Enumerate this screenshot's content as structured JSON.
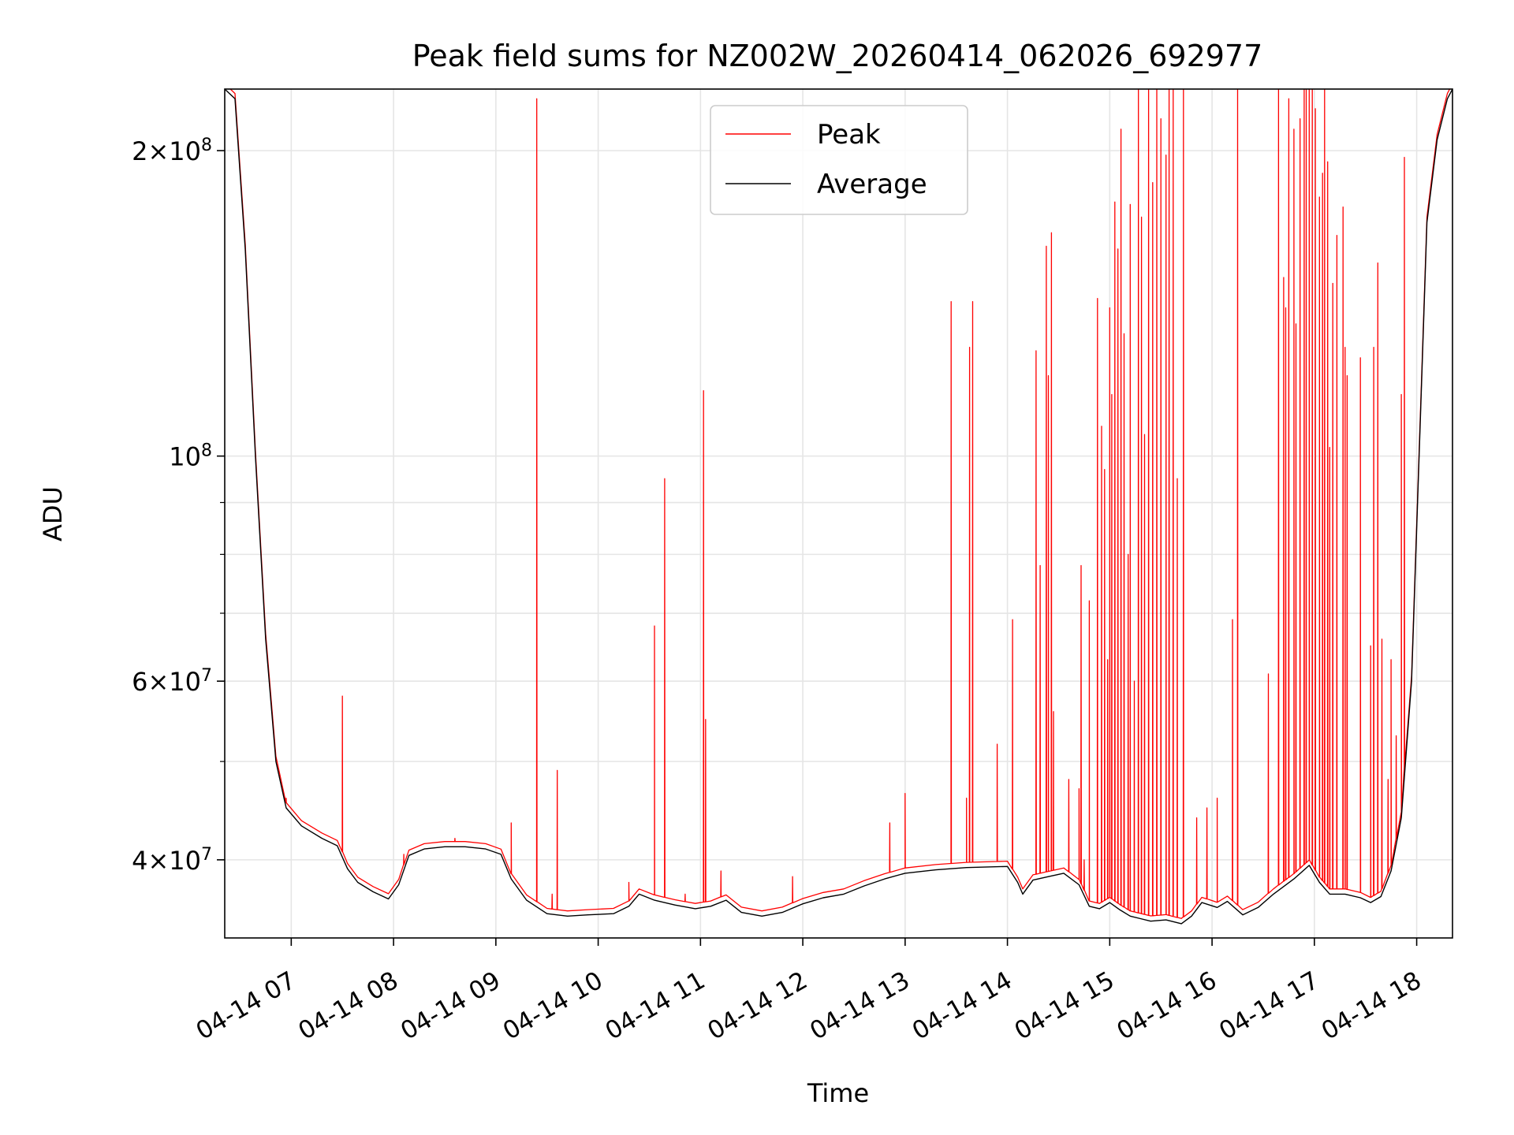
{
  "chart_data": {
    "type": "line",
    "title": "Peak field sums for NZ002W_20260414_062026_692977",
    "xlabel": "Time",
    "ylabel": "ADU",
    "yscale": "log",
    "grid": true,
    "legend_position": "top-center",
    "xlim": [
      6.35,
      18.35
    ],
    "ylim": [
      33500000,
      230000000
    ],
    "x_ticks": [
      {
        "value": 7,
        "label": "04-14 07"
      },
      {
        "value": 8,
        "label": "04-14 08"
      },
      {
        "value": 9,
        "label": "04-14 09"
      },
      {
        "value": 10,
        "label": "04-14 10"
      },
      {
        "value": 11,
        "label": "04-14 11"
      },
      {
        "value": 12,
        "label": "04-14 12"
      },
      {
        "value": 13,
        "label": "04-14 13"
      },
      {
        "value": 14,
        "label": "04-14 14"
      },
      {
        "value": 15,
        "label": "04-14 15"
      },
      {
        "value": 16,
        "label": "04-14 16"
      },
      {
        "value": 17,
        "label": "04-14 17"
      },
      {
        "value": 18,
        "label": "04-14 18"
      }
    ],
    "y_ticks": [
      {
        "value": 40000000,
        "mantissa": "4",
        "exp": "7"
      },
      {
        "value": 60000000,
        "mantissa": "6",
        "exp": "7"
      },
      {
        "value": 100000000,
        "mantissa": "",
        "exp": "8"
      },
      {
        "value": 200000000,
        "mantissa": "2",
        "exp": "8"
      }
    ],
    "y_minor_ticks": [
      50000000,
      70000000,
      80000000,
      90000000
    ],
    "series": [
      {
        "name": "Peak",
        "color": "#ff0000",
        "spikes": [
          [
            6.95,
            46000000
          ],
          [
            7.5,
            58000000
          ],
          [
            8.1,
            40500000
          ],
          [
            8.6,
            42000000
          ],
          [
            9.15,
            43500000
          ],
          [
            9.4,
            225000000
          ],
          [
            9.55,
            37000000
          ],
          [
            9.6,
            49000000
          ],
          [
            10.3,
            38000000
          ],
          [
            10.55,
            68000000
          ],
          [
            10.65,
            95000000
          ],
          [
            10.85,
            37000000
          ],
          [
            11.03,
            116000000
          ],
          [
            11.05,
            55000000
          ],
          [
            11.2,
            39000000
          ],
          [
            11.9,
            38500000
          ],
          [
            12.85,
            43500000
          ],
          [
            13.0,
            46500000
          ],
          [
            13.45,
            142000000
          ],
          [
            13.6,
            46000000
          ],
          [
            13.63,
            128000000
          ],
          [
            13.66,
            142000000
          ],
          [
            13.9,
            52000000
          ],
          [
            14.05,
            69000000
          ],
          [
            14.28,
            127000000
          ],
          [
            14.32,
            78000000
          ],
          [
            14.38,
            161000000
          ],
          [
            14.4,
            120000000
          ],
          [
            14.43,
            166000000
          ],
          [
            14.45,
            56000000
          ],
          [
            14.6,
            48000000
          ],
          [
            14.7,
            47000000
          ],
          [
            14.72,
            78000000
          ],
          [
            14.75,
            40000000
          ],
          [
            14.8,
            72000000
          ],
          [
            14.88,
            143000000
          ],
          [
            14.92,
            107000000
          ],
          [
            14.95,
            97000000
          ],
          [
            14.98,
            63000000
          ],
          [
            15.0,
            140000000
          ],
          [
            15.02,
            115000000
          ],
          [
            15.05,
            178000000
          ],
          [
            15.08,
            160000000
          ],
          [
            15.11,
            210000000
          ],
          [
            15.14,
            132000000
          ],
          [
            15.18,
            80000000
          ],
          [
            15.2,
            177000000
          ],
          [
            15.24,
            60000000
          ],
          [
            15.28,
            230000000
          ],
          [
            15.31,
            172000000
          ],
          [
            15.34,
            105000000
          ],
          [
            15.38,
            230000000
          ],
          [
            15.42,
            186000000
          ],
          [
            15.46,
            230000000
          ],
          [
            15.5,
            215000000
          ],
          [
            15.55,
            198000000
          ],
          [
            15.58,
            230000000
          ],
          [
            15.62,
            230000000
          ],
          [
            15.66,
            95000000
          ],
          [
            15.72,
            230000000
          ],
          [
            15.85,
            44000000
          ],
          [
            15.95,
            45000000
          ],
          [
            16.05,
            46000000
          ],
          [
            16.2,
            69000000
          ],
          [
            16.25,
            230000000
          ],
          [
            16.55,
            61000000
          ],
          [
            16.65,
            230000000
          ],
          [
            16.7,
            150000000
          ],
          [
            16.72,
            140000000
          ],
          [
            16.75,
            225000000
          ],
          [
            16.8,
            210000000
          ],
          [
            16.82,
            135000000
          ],
          [
            16.86,
            215000000
          ],
          [
            16.9,
            230000000
          ],
          [
            16.92,
            230000000
          ],
          [
            16.95,
            230000000
          ],
          [
            16.98,
            230000000
          ],
          [
            17.01,
            220000000
          ],
          [
            17.05,
            180000000
          ],
          [
            17.08,
            190000000
          ],
          [
            17.1,
            230000000
          ],
          [
            17.13,
            195000000
          ],
          [
            17.15,
            102000000
          ],
          [
            17.18,
            148000000
          ],
          [
            17.22,
            165000000
          ],
          [
            17.28,
            176000000
          ],
          [
            17.3,
            128000000
          ],
          [
            17.32,
            120000000
          ],
          [
            17.45,
            125000000
          ],
          [
            17.55,
            65000000
          ],
          [
            17.58,
            128000000
          ],
          [
            17.62,
            155000000
          ],
          [
            17.66,
            66000000
          ],
          [
            17.72,
            48000000
          ],
          [
            17.75,
            63000000
          ],
          [
            17.8,
            53000000
          ],
          [
            17.85,
            115000000
          ],
          [
            17.88,
            197000000
          ]
        ]
      },
      {
        "name": "Average",
        "color": "#000000",
        "points": [
          [
            6.35,
            230000000
          ],
          [
            6.45,
            225000000
          ],
          [
            6.55,
            160000000
          ],
          [
            6.65,
            100000000
          ],
          [
            6.75,
            66000000
          ],
          [
            6.85,
            50000000
          ],
          [
            6.95,
            45000000
          ],
          [
            7.1,
            43200000
          ],
          [
            7.3,
            42000000
          ],
          [
            7.45,
            41300000
          ],
          [
            7.55,
            39200000
          ],
          [
            7.65,
            38000000
          ],
          [
            7.8,
            37200000
          ],
          [
            7.95,
            36600000
          ],
          [
            8.05,
            37800000
          ],
          [
            8.15,
            40400000
          ],
          [
            8.3,
            41000000
          ],
          [
            8.5,
            41200000
          ],
          [
            8.7,
            41200000
          ],
          [
            8.9,
            41000000
          ],
          [
            9.05,
            40500000
          ],
          [
            9.15,
            38300000
          ],
          [
            9.3,
            36500000
          ],
          [
            9.5,
            35400000
          ],
          [
            9.7,
            35200000
          ],
          [
            9.9,
            35300000
          ],
          [
            10.15,
            35400000
          ],
          [
            10.3,
            36000000
          ],
          [
            10.4,
            37000000
          ],
          [
            10.55,
            36500000
          ],
          [
            10.75,
            36100000
          ],
          [
            10.95,
            35800000
          ],
          [
            11.1,
            36000000
          ],
          [
            11.25,
            36500000
          ],
          [
            11.4,
            35500000
          ],
          [
            11.6,
            35200000
          ],
          [
            11.8,
            35500000
          ],
          [
            12.0,
            36200000
          ],
          [
            12.2,
            36700000
          ],
          [
            12.4,
            37000000
          ],
          [
            12.6,
            37700000
          ],
          [
            12.8,
            38300000
          ],
          [
            13.0,
            38800000
          ],
          [
            13.3,
            39100000
          ],
          [
            13.6,
            39300000
          ],
          [
            14.0,
            39400000
          ],
          [
            14.1,
            38000000
          ],
          [
            14.15,
            37000000
          ],
          [
            14.25,
            38200000
          ],
          [
            14.4,
            38500000
          ],
          [
            14.55,
            38800000
          ],
          [
            14.7,
            37800000
          ],
          [
            14.8,
            36000000
          ],
          [
            14.9,
            35800000
          ],
          [
            15.0,
            36300000
          ],
          [
            15.1,
            35700000
          ],
          [
            15.2,
            35200000
          ],
          [
            15.3,
            35000000
          ],
          [
            15.4,
            34800000
          ],
          [
            15.55,
            34900000
          ],
          [
            15.7,
            34600000
          ],
          [
            15.8,
            35200000
          ],
          [
            15.9,
            36300000
          ],
          [
            16.05,
            35900000
          ],
          [
            16.15,
            36400000
          ],
          [
            16.3,
            35300000
          ],
          [
            16.45,
            35900000
          ],
          [
            16.6,
            37000000
          ],
          [
            16.8,
            38300000
          ],
          [
            16.95,
            39500000
          ],
          [
            17.05,
            38000000
          ],
          [
            17.15,
            37000000
          ],
          [
            17.3,
            37000000
          ],
          [
            17.45,
            36700000
          ],
          [
            17.55,
            36300000
          ],
          [
            17.65,
            36800000
          ],
          [
            17.75,
            39000000
          ],
          [
            17.85,
            44000000
          ],
          [
            17.95,
            60000000
          ],
          [
            18.05,
            120000000
          ],
          [
            18.1,
            170000000
          ],
          [
            18.2,
            205000000
          ],
          [
            18.3,
            225000000
          ],
          [
            18.35,
            230000000
          ]
        ]
      }
    ]
  }
}
